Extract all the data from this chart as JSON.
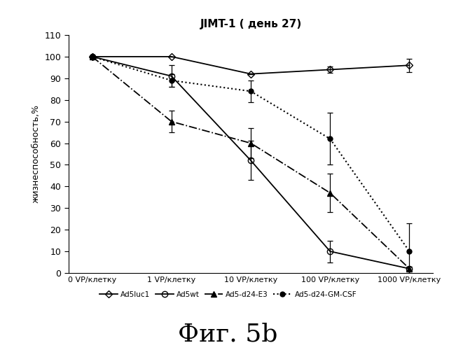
{
  "title": "JIMT-1 ( день 27)",
  "xlabel_ticks": [
    "0 VP/клетку",
    "1 VP/клетку",
    "10 VP/клетку",
    "100 VP/клетку",
    "1000 VP/клетку"
  ],
  "ylabel": "жизнеспособность,%",
  "x_positions": [
    0,
    1,
    2,
    3,
    4
  ],
  "ylim": [
    0,
    110
  ],
  "yticks": [
    0,
    10,
    20,
    30,
    40,
    50,
    60,
    70,
    80,
    90,
    100,
    110
  ],
  "series": [
    {
      "label": "Ad5luc1",
      "y": [
        100,
        100,
        92,
        94,
        96
      ],
      "yerr": [
        0,
        0,
        0,
        1.5,
        3
      ],
      "color": "#000000",
      "linestyle": "-",
      "marker": "D",
      "marker_fill": "none",
      "linewidth": 1.3,
      "markersize": 5
    },
    {
      "label": "Ad5wt",
      "y": [
        100,
        91,
        52,
        10,
        2
      ],
      "yerr": [
        0,
        5,
        9,
        5,
        1
      ],
      "color": "#000000",
      "linestyle": "-",
      "marker": "o",
      "marker_fill": "none",
      "linewidth": 1.3,
      "markersize": 6
    },
    {
      "label": "Ad5-d24-E3",
      "y": [
        100,
        70,
        60,
        37,
        2
      ],
      "yerr": [
        0,
        5,
        7,
        9,
        1
      ],
      "color": "#000000",
      "linestyle": "-.",
      "marker": "^",
      "marker_fill": "full",
      "linewidth": 1.3,
      "markersize": 6
    },
    {
      "label": "Ad5-d24-GM-CSF",
      "y": [
        100,
        89,
        84,
        62,
        10
      ],
      "yerr": [
        0,
        3,
        5,
        12,
        13
      ],
      "color": "#000000",
      "linestyle": ":",
      "marker": "o",
      "marker_fill": "full",
      "linewidth": 1.5,
      "markersize": 5
    }
  ],
  "fig_caption": "Фиг. 5b",
  "background_color": "#ffffff"
}
